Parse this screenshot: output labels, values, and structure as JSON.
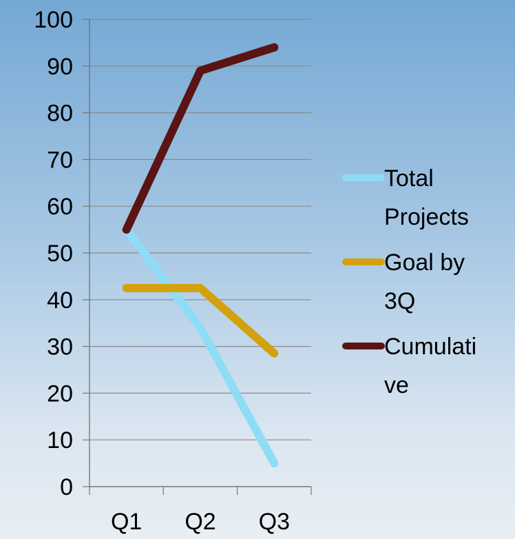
{
  "chart_data": {
    "type": "line",
    "categories": [
      "Q1",
      "Q2",
      "Q3"
    ],
    "ylim": [
      0,
      100
    ],
    "y_ticks": [
      "0",
      "10",
      "20",
      "30",
      "40",
      "50",
      "60",
      "70",
      "80",
      "90",
      "100"
    ],
    "grid": true,
    "legend_position": "right",
    "series": [
      {
        "name": "Total Projects",
        "legend_lines": [
          "Total",
          "Projects"
        ],
        "values": [
          55,
          34,
          5
        ],
        "color": "#8fdcf6"
      },
      {
        "name": "Goal by 3Q",
        "legend_lines": [
          "Goal by",
          "3Q"
        ],
        "values": [
          42.5,
          42.5,
          28.5
        ],
        "color": "#d4a10e"
      },
      {
        "name": "Cumulative",
        "legend_lines": [
          "Cumulati",
          "ve"
        ],
        "values": [
          55,
          89,
          94
        ],
        "color": "#5a1414"
      }
    ]
  }
}
